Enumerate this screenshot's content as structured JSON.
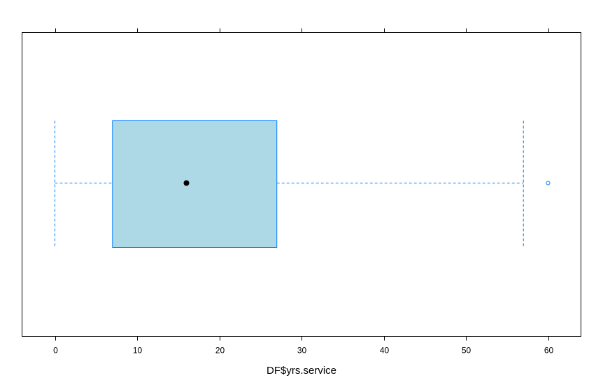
{
  "chart_data": {
    "type": "box",
    "title": "",
    "xlabel": "DF$yrs.service",
    "ylabel": "",
    "xlim": [
      -4,
      64
    ],
    "x_ticks": [
      0,
      10,
      20,
      30,
      40,
      50,
      60
    ],
    "x_tick_labels": [
      "0",
      "10",
      "20",
      "30",
      "40",
      "50",
      "60"
    ],
    "grid": false,
    "legend": "none",
    "series": [
      {
        "values": {
          "whisker_low": 0,
          "q1": 7,
          "median": 16,
          "q3": 27,
          "whisker_high": 57,
          "outliers": [
            60
          ]
        }
      }
    ],
    "colors": {
      "box_fill": "#ADD8E6",
      "box_stroke": "#0080FF",
      "median_dot": "#000000",
      "panel_border": "#000000"
    }
  }
}
